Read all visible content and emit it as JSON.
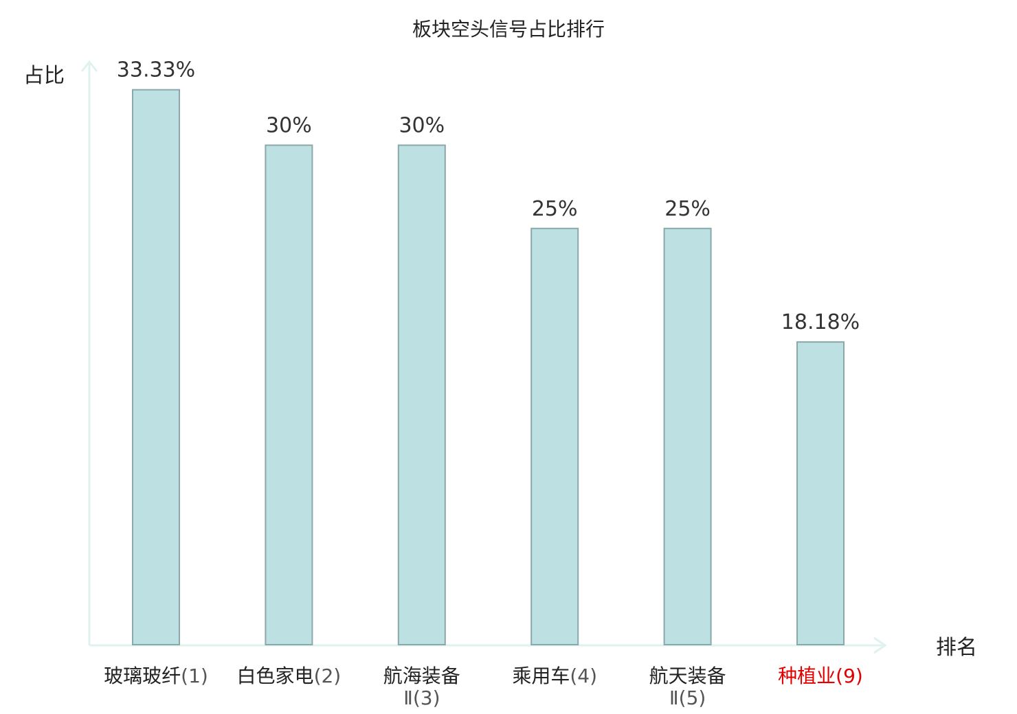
{
  "chart_data": {
    "type": "bar",
    "title": "板块空头信号占比排行",
    "ylabel": "占比",
    "xlabel": "排名",
    "ylim": [
      0,
      36
    ],
    "grid": false,
    "legend": "none",
    "categories": [
      {
        "name": "玻璃玻纤",
        "rank": "(1)",
        "highlight": false
      },
      {
        "name": "白色家电",
        "rank": "(2)",
        "highlight": false
      },
      {
        "name": "航海装备",
        "rank": "Ⅱ(3)",
        "highlight": false
      },
      {
        "name": "乘用车",
        "rank": "(4)",
        "highlight": false
      },
      {
        "name": "航天装备",
        "rank": "Ⅱ(5)",
        "highlight": false
      },
      {
        "name": "种植业",
        "rank": "(9)",
        "highlight": true
      }
    ],
    "values": [
      33.33,
      30,
      30,
      25,
      25,
      18.18
    ],
    "value_labels": [
      "33.33%",
      "30%",
      "30%",
      "25%",
      "25%",
      "18.18%"
    ]
  },
  "colors": {
    "bar_fill": "#bde0e3",
    "bar_stroke": "#8aa8aa",
    "axis": "#e0f2ef",
    "highlight_label": "#e00000",
    "rank_text": "#555555"
  }
}
